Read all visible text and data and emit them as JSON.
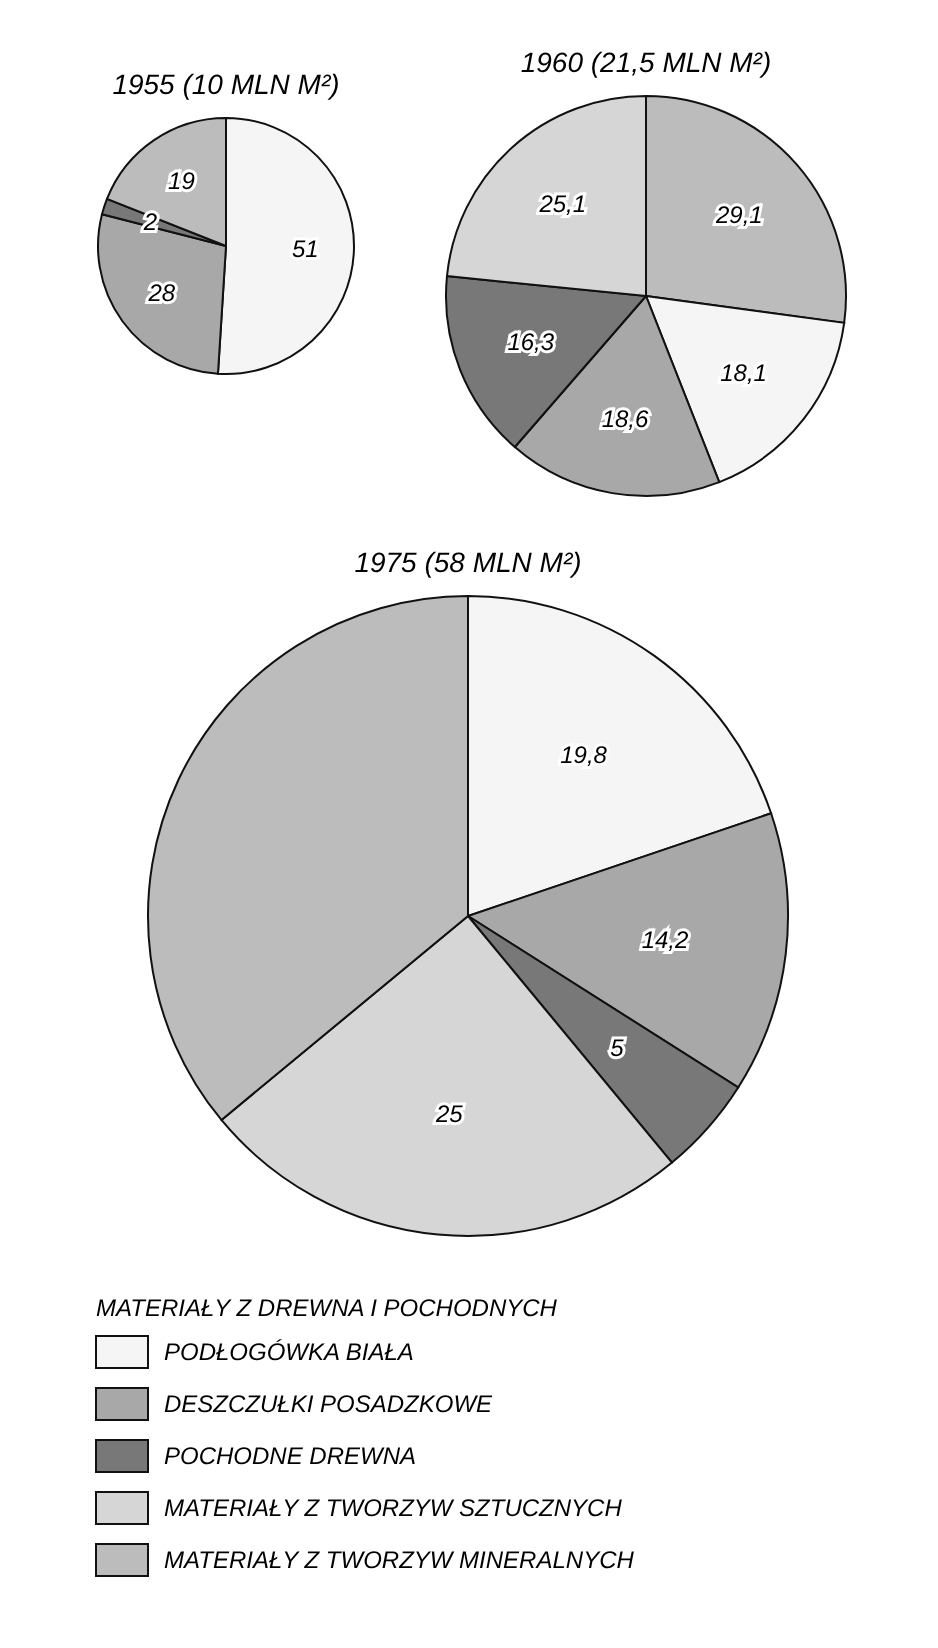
{
  "chart_data": [
    {
      "type": "pie",
      "title": "1955 (10 MLN M²)",
      "categories": [
        null,
        null,
        null,
        null
      ],
      "values": [
        51,
        28,
        2,
        19
      ],
      "value_labels": [
        "51",
        "28",
        "2",
        "19"
      ],
      "colors": [
        "#f5f5f5",
        "#a8a8a8",
        "#787878",
        "#bcbcbc"
      ]
    },
    {
      "type": "pie",
      "title": "1960 (21,5 MLN M²)",
      "categories": [
        null,
        null,
        null,
        null,
        null
      ],
      "values": [
        29.1,
        18.1,
        18.6,
        16.3,
        25.1
      ],
      "value_labels": [
        "29,1",
        "18,1",
        "18,6",
        "16,3",
        "25,1"
      ],
      "colors": [
        "#bcbcbc",
        "#f5f5f5",
        "#a8a8a8",
        "#787878",
        "#d6d6d6"
      ]
    },
    {
      "type": "pie",
      "title": "1975 (58 MLN M²)",
      "categories": [
        "PODŁOGÓWKA BIAŁA",
        "DESZCZUŁKI POSADZKOWE",
        "POCHODNE DREWNA",
        "MATERIAŁY Z TWORZYW SZTUCZNYCH",
        "MATERIAŁY Z TWORZYW MINERALNYCH"
      ],
      "values": [
        19.8,
        14.2,
        5,
        25,
        36
      ],
      "value_labels": [
        "19,8",
        "14,2",
        "5",
        "25",
        null
      ],
      "colors": [
        "#f5f5f5",
        "#a8a8a8",
        "#787878",
        "#d6d6d6",
        "#bcbcbc"
      ],
      "legend": "bottom",
      "legend_title": "MATERIAŁY Z DREWNA I POCHODNYCH"
    }
  ]
}
